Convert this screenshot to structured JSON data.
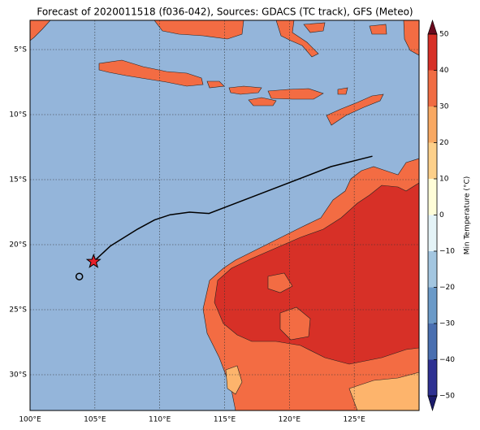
{
  "chart_data": {
    "type": "map",
    "title": "Forecast of 2020011518 (f036-042), Sources: GDACS (TC track), GFS (Meteo)",
    "xlim": [
      100,
      130
    ],
    "ylim": [
      -32.75,
      -2.75
    ],
    "xticks": [
      {
        "value": 100,
        "label": "100°E"
      },
      {
        "value": 105,
        "label": "105°E"
      },
      {
        "value": 110,
        "label": "110°E"
      },
      {
        "value": 115,
        "label": "115°E"
      },
      {
        "value": 120,
        "label": "120°E"
      },
      {
        "value": 125,
        "label": "125°E"
      }
    ],
    "yticks": [
      {
        "value": -5,
        "label": "5°S"
      },
      {
        "value": -10,
        "label": "10°S"
      },
      {
        "value": -15,
        "label": "15°S"
      },
      {
        "value": -20,
        "label": "20°S"
      },
      {
        "value": -25,
        "label": "25°S"
      },
      {
        "value": -30,
        "label": "30°S"
      }
    ],
    "grid": true,
    "track": {
      "color": "#000000",
      "lon": [
        126.4,
        123.2,
        117.2,
        113.8,
        112.3,
        110.8,
        109.6,
        108.3,
        106.2,
        104.9
      ],
      "lat": [
        -13.2,
        -14.0,
        -16.3,
        -17.6,
        -17.5,
        -17.7,
        -18.1,
        -18.8,
        -20.1,
        -21.3
      ]
    },
    "current_position": {
      "color": "#e8202a",
      "lon": 104.9,
      "lat": -21.3
    },
    "track_start": {
      "lon": 103.8,
      "lat": -22.45
    },
    "colorbar": {
      "label": "Min Temperature (°C)",
      "ticks": [
        {
          "value": -50,
          "label": "−50"
        },
        {
          "value": -40,
          "label": "−40"
        },
        {
          "value": -30,
          "label": "−30"
        },
        {
          "value": -20,
          "label": "−20"
        },
        {
          "value": -10,
          "label": "−10"
        },
        0,
        10,
        20,
        30,
        40,
        50
      ],
      "colors": [
        "#2e3192",
        "#4a6fb0",
        "#6b9ac8",
        "#a3c6e0",
        "#e4f3f7",
        "#fffdd8",
        "#fdd08a",
        "#f8a862",
        "#f06c43",
        "#d73027"
      ]
    }
  }
}
